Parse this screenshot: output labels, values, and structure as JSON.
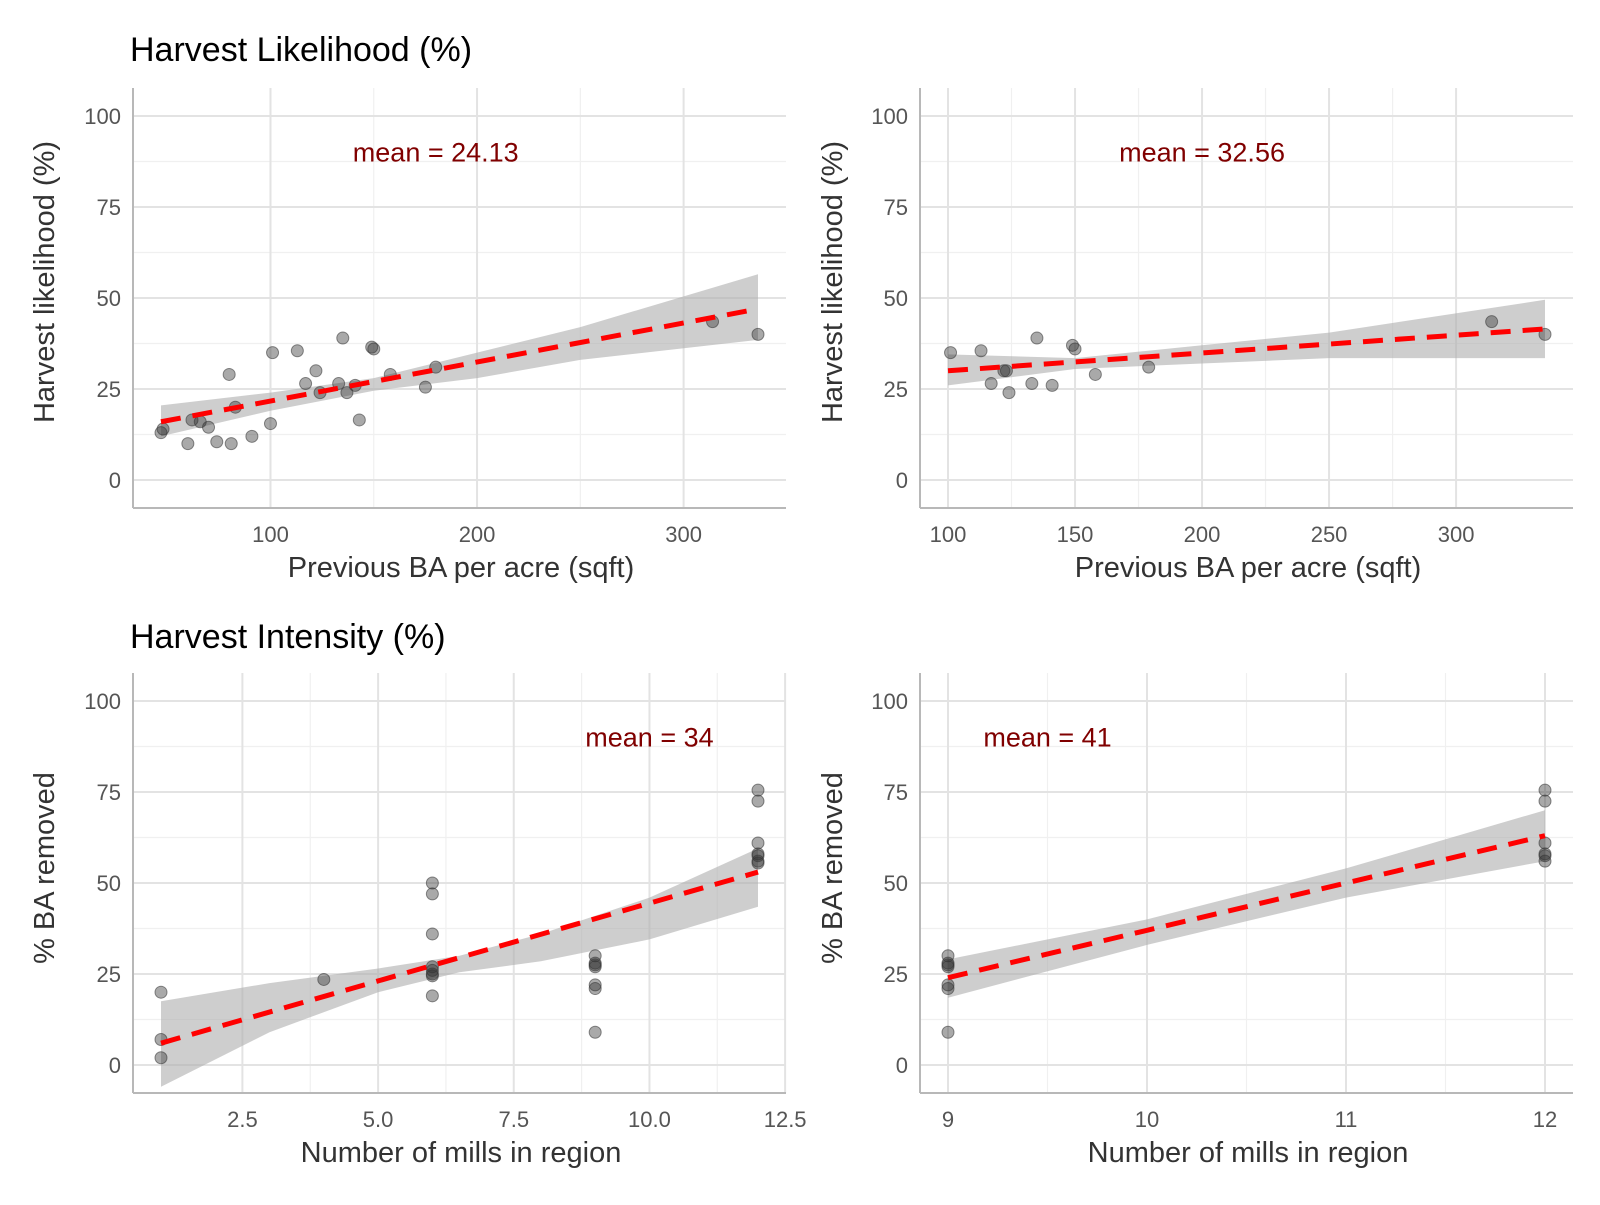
{
  "row_titles": [
    "Harvest Likelihood (%)",
    "Harvest Intensity (%)"
  ],
  "chart_data": [
    {
      "type": "scatter",
      "row_title": "Harvest Likelihood (%)",
      "xlabel": "Previous BA per acre (sqft)",
      "ylabel": "Harvest likelihood (%)",
      "annotation": "mean = 24.13",
      "annotation_at": [
        180,
        90
      ],
      "xlim": [
        47,
        336
      ],
      "ylim": [
        0,
        100
      ],
      "xticks": [
        100,
        200,
        300
      ],
      "xtick_labels": [
        "100",
        "200",
        "300"
      ],
      "yticks": [
        0,
        25,
        50,
        75,
        100
      ],
      "ytick_labels": [
        "0",
        "25",
        "50",
        "75",
        "100"
      ],
      "points": [
        [
          47,
          13
        ],
        [
          48,
          14
        ],
        [
          60,
          10
        ],
        [
          62,
          16.5
        ],
        [
          66,
          16
        ],
        [
          70,
          14.5
        ],
        [
          74,
          10.5
        ],
        [
          80,
          29
        ],
        [
          81,
          10
        ],
        [
          83,
          20
        ],
        [
          91,
          12
        ],
        [
          100,
          15.5
        ],
        [
          101,
          35
        ],
        [
          113,
          35.5
        ],
        [
          117,
          26.5
        ],
        [
          122,
          30
        ],
        [
          124,
          24
        ],
        [
          133,
          26.5
        ],
        [
          135,
          39
        ],
        [
          137,
          24
        ],
        [
          141,
          26
        ],
        [
          143,
          16.5
        ],
        [
          149,
          36.5
        ],
        [
          150,
          36
        ],
        [
          158,
          29
        ],
        [
          175,
          25.5
        ],
        [
          180,
          31
        ],
        [
          314,
          43.5
        ],
        [
          336,
          40
        ]
      ],
      "trend": {
        "x": [
          47,
          336
        ],
        "y": [
          16,
          47
        ]
      },
      "ci_band": {
        "x": [
          47,
          100,
          150,
          200,
          250,
          336
        ],
        "lower": [
          12,
          19,
          24.5,
          28,
          33,
          38.5
        ],
        "upper": [
          20.5,
          24,
          28,
          35,
          42,
          56.5
        ]
      }
    },
    {
      "type": "scatter",
      "row_title": "Harvest Likelihood (%)",
      "xlabel": "Previous BA per acre (sqft)",
      "ylabel": "Harvest likelihood (%)",
      "annotation": "mean = 32.56",
      "annotation_at": [
        200,
        90
      ],
      "xlim": [
        100,
        335
      ],
      "ylim": [
        0,
        100
      ],
      "xticks": [
        100,
        150,
        200,
        250,
        300
      ],
      "xtick_labels": [
        "100",
        "150",
        "200",
        "250",
        "300"
      ],
      "yticks": [
        0,
        25,
        50,
        75,
        100
      ],
      "ytick_labels": [
        "0",
        "25",
        "50",
        "75",
        "100"
      ],
      "points": [
        [
          101,
          35
        ],
        [
          113,
          35.5
        ],
        [
          117,
          26.5
        ],
        [
          122,
          30
        ],
        [
          123,
          30
        ],
        [
          124,
          24
        ],
        [
          133,
          26.5
        ],
        [
          135,
          39
        ],
        [
          141,
          26
        ],
        [
          149,
          37
        ],
        [
          150,
          36
        ],
        [
          158,
          29
        ],
        [
          179,
          31
        ],
        [
          314,
          43.5
        ],
        [
          335,
          40
        ]
      ],
      "trend": {
        "x": [
          100,
          335
        ],
        "y": [
          30,
          41.5
        ]
      },
      "ci_band": {
        "x": [
          100,
          150,
          200,
          250,
          335
        ],
        "lower": [
          26,
          30.5,
          32,
          33.5,
          33.5
        ],
        "upper": [
          34.5,
          33.5,
          37,
          40.5,
          49.5
        ]
      }
    },
    {
      "type": "scatter",
      "row_title": "Harvest Intensity (%)",
      "xlabel": "Number of mills in region",
      "ylabel": "% BA removed",
      "annotation": "mean = 34",
      "annotation_at": [
        10,
        90
      ],
      "xlim": [
        1,
        12
      ],
      "ylim": [
        0,
        100
      ],
      "xticks": [
        2.5,
        5.0,
        7.5,
        10.0,
        12.5
      ],
      "xtick_labels": [
        "2.5",
        "5.0",
        "7.5",
        "10.0",
        "12.5"
      ],
      "yticks": [
        0,
        25,
        50,
        75,
        100
      ],
      "ytick_labels": [
        "0",
        "25",
        "50",
        "75",
        "100"
      ],
      "points": [
        [
          1,
          20
        ],
        [
          1,
          7
        ],
        [
          1,
          2
        ],
        [
          4,
          23.5
        ],
        [
          6,
          50
        ],
        [
          6,
          47
        ],
        [
          6,
          36
        ],
        [
          6,
          27
        ],
        [
          6,
          26
        ],
        [
          6,
          25
        ],
        [
          6,
          24.5
        ],
        [
          6,
          19
        ],
        [
          9,
          30
        ],
        [
          9,
          28
        ],
        [
          9,
          27
        ],
        [
          9,
          27.5
        ],
        [
          9,
          22
        ],
        [
          9,
          21
        ],
        [
          9,
          9
        ],
        [
          12,
          75.5
        ],
        [
          12,
          72.5
        ],
        [
          12,
          61
        ],
        [
          12,
          58
        ],
        [
          12,
          57.5
        ],
        [
          12,
          56
        ],
        [
          12,
          55.5
        ]
      ],
      "trend": {
        "x": [
          1,
          12
        ],
        "y": [
          6,
          53
        ]
      },
      "ci_band": {
        "x": [
          1,
          3,
          5,
          6.5,
          8,
          10,
          12
        ],
        "lower": [
          -6,
          9,
          20,
          25.5,
          28.5,
          34.5,
          43.5
        ],
        "upper": [
          17.5,
          22.5,
          26.5,
          30,
          36,
          46,
          59.5
        ]
      }
    },
    {
      "type": "scatter",
      "row_title": "Harvest Intensity (%)",
      "xlabel": "Number of mills in region",
      "ylabel": "% BA removed",
      "annotation": "mean = 41",
      "annotation_at": [
        9.5,
        90
      ],
      "xlim": [
        9,
        12
      ],
      "ylim": [
        0,
        100
      ],
      "xticks": [
        9,
        10,
        11,
        12
      ],
      "xtick_labels": [
        "9",
        "10",
        "11",
        "12"
      ],
      "yticks": [
        0,
        25,
        50,
        75,
        100
      ],
      "ytick_labels": [
        "0",
        "25",
        "50",
        "75",
        "100"
      ],
      "points": [
        [
          9,
          30
        ],
        [
          9,
          28
        ],
        [
          9,
          27
        ],
        [
          9,
          27.5
        ],
        [
          9,
          22
        ],
        [
          9,
          21
        ],
        [
          9,
          9
        ],
        [
          12,
          75.5
        ],
        [
          12,
          72.5
        ],
        [
          12,
          61
        ],
        [
          12,
          58
        ],
        [
          12,
          57.5
        ],
        [
          12,
          56
        ]
      ],
      "trend": {
        "x": [
          9,
          12
        ],
        "y": [
          24,
          63
        ]
      },
      "ci_band": {
        "x": [
          9,
          10,
          11,
          12
        ],
        "lower": [
          18.5,
          33,
          46,
          56
        ],
        "upper": [
          29,
          40,
          54,
          70
        ]
      }
    }
  ]
}
